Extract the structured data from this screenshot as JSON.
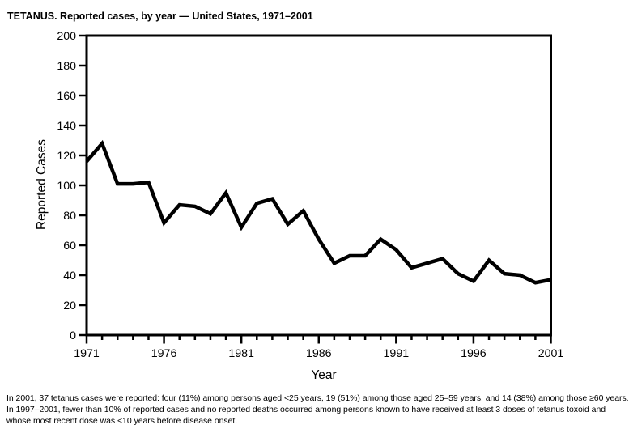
{
  "title": "TETANUS. Reported cases, by year — United States, 1971–2001",
  "chart_data": {
    "type": "line",
    "x": [
      1971,
      1972,
      1973,
      1974,
      1975,
      1976,
      1977,
      1978,
      1979,
      1980,
      1981,
      1982,
      1983,
      1984,
      1985,
      1986,
      1987,
      1988,
      1989,
      1990,
      1991,
      1992,
      1993,
      1994,
      1995,
      1996,
      1997,
      1998,
      1999,
      2000,
      2001
    ],
    "values": [
      116,
      128,
      101,
      101,
      102,
      75,
      87,
      86,
      81,
      95,
      72,
      88,
      91,
      74,
      83,
      64,
      48,
      53,
      53,
      64,
      57,
      45,
      48,
      51,
      41,
      36,
      50,
      41,
      40,
      35,
      37
    ],
    "xlabel": "Year",
    "ylabel": "Reported Cases",
    "xlim": [
      1971,
      2001
    ],
    "ylim": [
      0,
      200
    ],
    "yticks": [
      0,
      20,
      40,
      60,
      80,
      100,
      120,
      140,
      160,
      180,
      200
    ],
    "xticks_labeled": [
      1971,
      1976,
      1981,
      1986,
      1991,
      1996,
      2001
    ],
    "xtick_minor_step": 1,
    "grid": false,
    "legend_position": "none",
    "line_color": "#000000",
    "axis_color": "#000000",
    "background": "#ffffff"
  },
  "footnote": {
    "lines": [
      "In 2001, 37 tetanus cases were reported: four (11%) among persons aged <25 years, 19 (51%) among those aged 25–59 years, and 14 (38%) among those ≥60 years.",
      "In 1997–2001, fewer than 10% of reported cases and no reported deaths occurred among persons known to have received at least 3 doses of tetanus toxoid and",
      "whose most recent dose was <10 years before disease onset."
    ]
  }
}
